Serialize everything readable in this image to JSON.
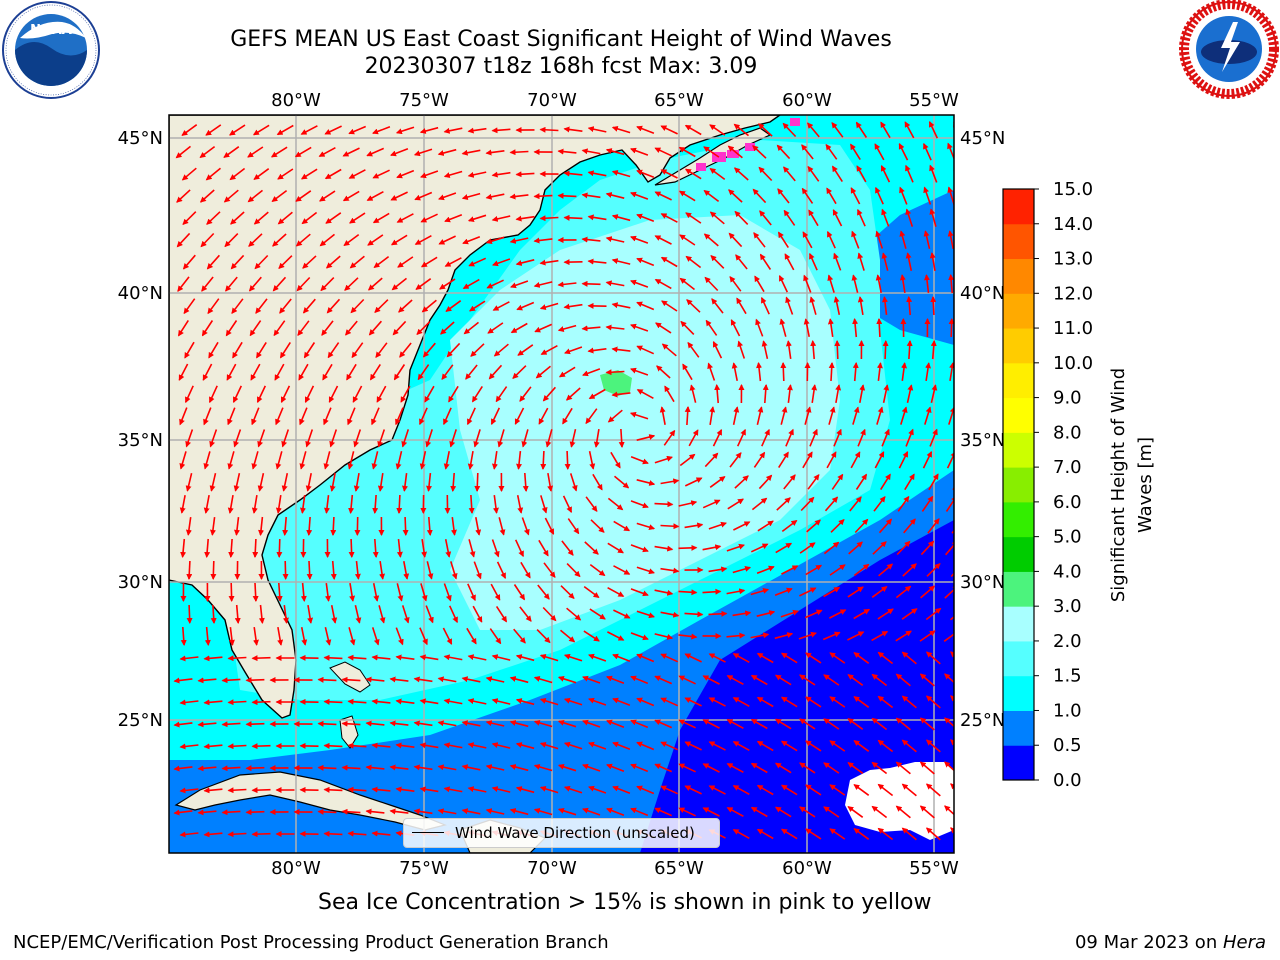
{
  "title": {
    "line1": "GEFS MEAN US East Coast Significant Height of Wind Waves",
    "line2": "20230307 t18z 168h fcst   Max: 3.09"
  },
  "logos": {
    "left": "NOAA",
    "left_ring": "NATIONAL OCEANIC AND ATMOSPHERIC ADMINISTRATION · U.S. DEPARTMENT OF COMMERCE",
    "right_ring": "NATIONAL WEATHER SERVICE"
  },
  "map": {
    "lon_labels": [
      "80°W",
      "75°W",
      "70°W",
      "65°W",
      "60°W",
      "55°W"
    ],
    "lat_labels": [
      "45°N",
      "40°N",
      "35°N",
      "30°N",
      "25°N"
    ],
    "colors": {
      "land": "#efeddc",
      "wave_0_0.5": "#0000ff",
      "wave_0.5_1": "#0080ff",
      "wave_1_1.5": "#00ffff",
      "wave_1.5_2": "#55ffff",
      "wave_2_3": "#a8ffff",
      "wave_3_4": "#4cf37d",
      "arrow": "#ff0000",
      "sea_ice": "#ff33cc",
      "grid": "#b0b0b0"
    },
    "legend_label": "Wind Wave Direction (unscaled)"
  },
  "colorbar": {
    "label_line1": "Significant Height of Wind",
    "label_line2": "Waves [m]",
    "ticks": [
      "0.0",
      "0.5",
      "1.0",
      "1.5",
      "2.0",
      "3.0",
      "4.0",
      "5.0",
      "6.0",
      "7.0",
      "8.0",
      "9.0",
      "10.0",
      "11.0",
      "12.0",
      "13.0",
      "14.0",
      "15.0"
    ],
    "colors": [
      "#0000ff",
      "#0080ff",
      "#00ffff",
      "#55ffff",
      "#a8ffff",
      "#4cf37d",
      "#00cc00",
      "#33ee00",
      "#88ee00",
      "#ccff00",
      "#ffff00",
      "#ffee00",
      "#ffcc00",
      "#ffaa00",
      "#ff8800",
      "#ff5500",
      "#ff2200",
      "#ff0000"
    ]
  },
  "ice_note": "Sea Ice Concentration > 15% is shown in pink to yellow",
  "footer": {
    "left": "NCEP/EMC/Verification Post Processing Product Generation Branch",
    "date": "09 Mar 2023 on ",
    "host": "Hera"
  }
}
